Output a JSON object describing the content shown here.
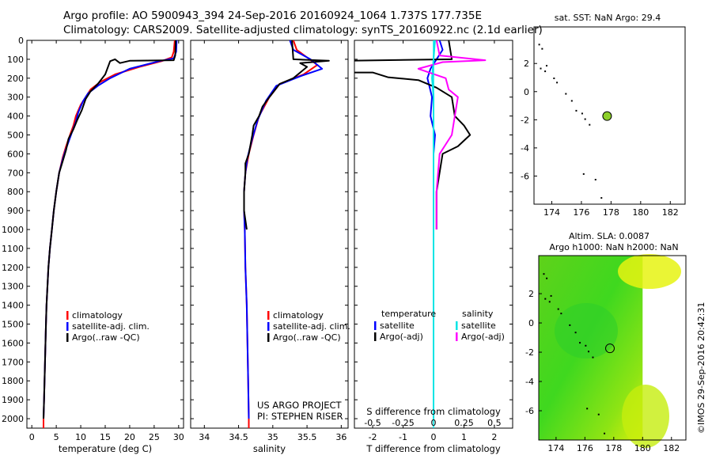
{
  "header": {
    "line1": "Argo profile: AO 5900943_394 24-Sep-2016 20160924_1064 1.737S 177.735E",
    "line2": "Climatology: CARS2009. Satellite-adjusted climatology: synTS_20160922.nc (2.1d earlier)"
  },
  "footer": {
    "project": "US ARGO PROJECT",
    "pi": "PI: STEPHEN RISER",
    "imos": "©IMOS 29-Sep-2016 20:42:31"
  },
  "colors": {
    "climatology": "#ff0000",
    "satellite": "#0000ff",
    "argo": "#000000",
    "sal_satellite": "#00e5e5",
    "sal_argo": "#ff00ff",
    "map_point": "#8ccf2a"
  },
  "chart_data": [
    {
      "id": "temperature",
      "type": "line",
      "xlabel": "temperature (deg C)",
      "ylabel": "",
      "xlim": [
        -1,
        31
      ],
      "ylim": [
        2050,
        0
      ],
      "xticks": [
        "0",
        "5",
        "10",
        "15",
        "20",
        "25",
        "30"
      ],
      "xtick_values": [
        0,
        5,
        10,
        15,
        20,
        25,
        30
      ],
      "yticks": [
        "0",
        "100",
        "200",
        "300",
        "400",
        "500",
        "600",
        "700",
        "800",
        "900",
        "1000",
        "1100",
        "1200",
        "1300",
        "1400",
        "1500",
        "1600",
        "1700",
        "1800",
        "1900",
        "2000"
      ],
      "ytick_values": [
        0,
        100,
        200,
        300,
        400,
        500,
        600,
        700,
        800,
        900,
        1000,
        1100,
        1200,
        1300,
        1400,
        1500,
        1600,
        1700,
        1800,
        1900,
        2000
      ],
      "legend": [
        "climatology",
        "satellite-adj. clim.",
        "Argo(..raw -QC)"
      ],
      "series": [
        {
          "name": "climatology",
          "color": "#ff0000",
          "width": 2,
          "points": [
            [
              29.2,
              0
            ],
            [
              29.0,
              60
            ],
            [
              28.6,
              90
            ],
            [
              26.5,
              110
            ],
            [
              22,
              140
            ],
            [
              17,
              180
            ],
            [
              14,
              220
            ],
            [
              12,
              260
            ],
            [
              11,
              300
            ],
            [
              10,
              340
            ],
            [
              9,
              400
            ],
            [
              8.5,
              450
            ],
            [
              7.8,
              500
            ],
            [
              7,
              560
            ],
            [
              6.3,
              620
            ],
            [
              5.6,
              700
            ],
            [
              5,
              800
            ],
            [
              4.5,
              900
            ],
            [
              4.1,
              1000
            ],
            [
              3.7,
              1100
            ],
            [
              3.4,
              1200
            ],
            [
              3.2,
              1300
            ],
            [
              3,
              1400
            ],
            [
              2.9,
              1500
            ],
            [
              2.8,
              1600
            ],
            [
              2.7,
              1700
            ],
            [
              2.6,
              1800
            ],
            [
              2.5,
              1900
            ],
            [
              2.4,
              2000
            ],
            [
              2.4,
              2050
            ]
          ]
        },
        {
          "name": "satellite-adj. clim.",
          "color": "#0000ff",
          "width": 2,
          "points": [
            [
              29.6,
              0
            ],
            [
              29.5,
              60
            ],
            [
              29,
              95
            ],
            [
              26,
              110
            ],
            [
              20,
              150
            ],
            [
              16,
              200
            ],
            [
              13.5,
              240
            ],
            [
              11.5,
              280
            ],
            [
              10.5,
              320
            ],
            [
              9.5,
              380
            ],
            [
              9,
              430
            ],
            [
              8.3,
              480
            ],
            [
              7.6,
              530
            ],
            [
              6.9,
              580
            ],
            [
              6.3,
              630
            ],
            [
              5.6,
              700
            ],
            [
              5,
              800
            ],
            [
              4.5,
              900
            ],
            [
              4.1,
              1000
            ],
            [
              3.7,
              1100
            ],
            [
              3.4,
              1200
            ],
            [
              3.2,
              1300
            ],
            [
              3,
              1400
            ],
            [
              2.9,
              1500
            ],
            [
              2.8,
              1600
            ],
            [
              2.7,
              1700
            ],
            [
              2.6,
              1800
            ],
            [
              2.5,
              1900
            ],
            [
              2.4,
              2000
            ]
          ]
        },
        {
          "name": "Argo(..raw -QC)",
          "color": "#000000",
          "width": 2,
          "points": [
            [
              29.4,
              0
            ],
            [
              29.3,
              80
            ],
            [
              29.0,
              105
            ],
            [
              20,
              108
            ],
            [
              18,
              120
            ],
            [
              17,
              100
            ],
            [
              16,
              110
            ],
            [
              15,
              180
            ],
            [
              13.5,
              230
            ],
            [
              12,
              270
            ],
            [
              11,
              310
            ],
            [
              10.2,
              370
            ],
            [
              9.3,
              420
            ],
            [
              8.5,
              470
            ],
            [
              7.5,
              520
            ],
            [
              7,
              580
            ],
            [
              6.3,
              640
            ],
            [
              5.6,
              700
            ],
            [
              5,
              800
            ],
            [
              4.5,
              900
            ],
            [
              4.1,
              1000
            ],
            [
              3.7,
              1100
            ],
            [
              3.4,
              1200
            ],
            [
              3.2,
              1300
            ],
            [
              3,
              1400
            ],
            [
              2.9,
              1500
            ],
            [
              2.8,
              1600
            ],
            [
              2.7,
              1700
            ],
            [
              2.6,
              1800
            ],
            [
              2.5,
              1900
            ],
            [
              2.4,
              2000
            ]
          ]
        }
      ]
    },
    {
      "id": "salinity",
      "type": "line",
      "xlabel": "salinity",
      "ylabel": "",
      "xlim": [
        33.8,
        36.1
      ],
      "ylim": [
        2050,
        0
      ],
      "xticks": [
        "34",
        "34.5",
        "35",
        "35.5",
        "36"
      ],
      "xtick_values": [
        34,
        34.5,
        35,
        35.5,
        36
      ],
      "legend": [
        "climatology",
        "satellite-adj. clim.",
        "Argo(..raw -QC)"
      ],
      "series": [
        {
          "name": "climatology",
          "color": "#ff0000",
          "width": 2,
          "points": [
            [
              35.3,
              0
            ],
            [
              35.35,
              50
            ],
            [
              35.5,
              90
            ],
            [
              35.65,
              130
            ],
            [
              35.45,
              180
            ],
            [
              35.1,
              230
            ],
            [
              34.95,
              300
            ],
            [
              34.8,
              400
            ],
            [
              34.72,
              500
            ],
            [
              34.65,
              600
            ],
            [
              34.6,
              700
            ],
            [
              34.58,
              800
            ],
            [
              34.58,
              900
            ],
            [
              34.59,
              1000
            ],
            [
              34.6,
              1200
            ],
            [
              34.62,
              1400
            ],
            [
              34.63,
              1600
            ],
            [
              34.64,
              1800
            ],
            [
              34.65,
              2000
            ],
            [
              34.65,
              2050
            ]
          ]
        },
        {
          "name": "satellite-adj. clim.",
          "color": "#0000ff",
          "width": 2,
          "points": [
            [
              35.25,
              0
            ],
            [
              35.3,
              50
            ],
            [
              35.55,
              100
            ],
            [
              35.72,
              150
            ],
            [
              35.4,
              190
            ],
            [
              35.05,
              240
            ],
            [
              34.9,
              320
            ],
            [
              34.78,
              420
            ],
            [
              34.7,
              520
            ],
            [
              34.63,
              620
            ],
            [
              34.6,
              700
            ],
            [
              34.58,
              800
            ],
            [
              34.58,
              900
            ],
            [
              34.59,
              1000
            ],
            [
              34.6,
              1200
            ],
            [
              34.62,
              1400
            ],
            [
              34.63,
              1600
            ],
            [
              34.64,
              1800
            ],
            [
              34.65,
              2000
            ]
          ]
        },
        {
          "name": "Argo(..raw -QC)",
          "color": "#000000",
          "width": 2,
          "points": [
            [
              35.28,
              0
            ],
            [
              35.3,
              100
            ],
            [
              35.82,
              108
            ],
            [
              35.4,
              120
            ],
            [
              35.5,
              140
            ],
            [
              35.3,
              200
            ],
            [
              35.1,
              230
            ],
            [
              34.95,
              300
            ],
            [
              34.85,
              350
            ],
            [
              34.8,
              400
            ],
            [
              34.72,
              450
            ],
            [
              34.7,
              500
            ],
            [
              34.65,
              600
            ],
            [
              34.6,
              650
            ],
            [
              34.6,
              700
            ],
            [
              34.58,
              800
            ],
            [
              34.58,
              900
            ],
            [
              34.6,
              950
            ],
            [
              34.62,
              1000
            ]
          ]
        }
      ]
    },
    {
      "id": "differences",
      "type": "line",
      "xlabel": "T difference from climatology",
      "top_label": "S difference from climatology",
      "xlim": [
        -2.6,
        2.6
      ],
      "ylim": [
        2050,
        0
      ],
      "xticks": [
        "-2",
        "-1",
        "0",
        "1",
        "2"
      ],
      "xtick_values": [
        -2,
        -1,
        0,
        1,
        2
      ],
      "sticks": [
        "-0.5",
        "-0.25",
        "0",
        "0.25",
        "0.5"
      ],
      "stick_values": [
        -0.5,
        -0.25,
        0,
        0.25,
        0.5
      ],
      "legend_titles": [
        "temperature",
        "salinity"
      ],
      "legend": [
        "satellite",
        "Argo(-adj)",
        "satellite",
        "Argo(-adj)"
      ],
      "series": [
        {
          "name": "satellite",
          "color": "#0000ff",
          "width": 2,
          "points": [
            [
              0.2,
              0
            ],
            [
              0.3,
              50
            ],
            [
              0.1,
              100
            ],
            [
              -0.1,
              150
            ],
            [
              -0.2,
              200
            ],
            [
              -0.05,
              300
            ],
            [
              -0.1,
              400
            ],
            [
              0.05,
              500
            ],
            [
              0,
              600
            ],
            [
              0,
              800
            ],
            [
              0,
              1000
            ],
            [
              0,
              1500
            ],
            [
              0,
              2000
            ]
          ]
        },
        {
          "name": "Argo(-adj)",
          "color": "#000000",
          "width": 2,
          "points": [
            [
              0.5,
              0
            ],
            [
              0.6,
              100
            ],
            [
              -3,
              108
            ],
            [
              -3,
              112
            ],
            [
              -2.7,
              115
            ],
            [
              -2.9,
              170
            ],
            [
              -2,
              170
            ],
            [
              -1.5,
              195
            ],
            [
              -0.5,
              210
            ],
            [
              0.1,
              250
            ],
            [
              0.6,
              300
            ],
            [
              0.7,
              400
            ],
            [
              1,
              450
            ],
            [
              1.2,
              500
            ],
            [
              0.8,
              560
            ],
            [
              0.3,
              600
            ],
            [
              0.1,
              800
            ],
            [
              0.1,
              1000
            ]
          ]
        },
        {
          "name": "satellite",
          "color": "#00e5e5",
          "width": 2,
          "points": [
            [
              0.05,
              0
            ],
            [
              0,
              100
            ],
            [
              -0.05,
              200
            ],
            [
              0,
              300
            ],
            [
              0,
              600
            ],
            [
              0,
              1000
            ],
            [
              0,
              1500
            ],
            [
              0,
              2000
            ]
          ]
        },
        {
          "name": "Argo(-adj)",
          "color": "#ff00ff",
          "width": 2,
          "points": [
            [
              0.1,
              0
            ],
            [
              0.2,
              80
            ],
            [
              1.7,
              105
            ],
            [
              0.3,
              115
            ],
            [
              -0.5,
              150
            ],
            [
              0.4,
              200
            ],
            [
              0.5,
              260
            ],
            [
              0.8,
              300
            ],
            [
              0.7,
              400
            ],
            [
              0.6,
              500
            ],
            [
              0.2,
              600
            ],
            [
              0.1,
              800
            ],
            [
              0.1,
              1000
            ]
          ]
        }
      ]
    },
    {
      "id": "map_sst",
      "type": "scatter",
      "title": "sat. SST: NaN Argo: 29.4",
      "xlim": [
        172.8,
        183
      ],
      "ylim": [
        -8,
        4.6
      ],
      "xticks": [
        "174",
        "176",
        "178",
        "180",
        "182"
      ],
      "xtick_values": [
        174,
        176,
        178,
        180,
        182
      ],
      "yticks": [
        "2",
        "0",
        "-2",
        "-4",
        "-6"
      ],
      "ytick_values": [
        2,
        0,
        -2,
        -4,
        -6
      ],
      "point": [
        177.735,
        -1.737
      ]
    },
    {
      "id": "map_sla",
      "type": "heatmap",
      "title": "Altim. SLA: 0.0087",
      "subtitle": "Argo h1000: NaN h2000: NaN",
      "xlim": [
        172.8,
        183
      ],
      "ylim": [
        -8,
        4.6
      ],
      "field_xlim": [
        172.8,
        180
      ],
      "xticks": [
        "174",
        "176",
        "178",
        "180",
        "182"
      ],
      "xtick_values": [
        174,
        176,
        178,
        180,
        182
      ],
      "yticks": [
        "2",
        "0",
        "-2",
        "-4",
        "-6"
      ],
      "ytick_values": [
        2,
        0,
        -2,
        -4,
        -6
      ],
      "point": [
        177.735,
        -1.737
      ]
    }
  ]
}
